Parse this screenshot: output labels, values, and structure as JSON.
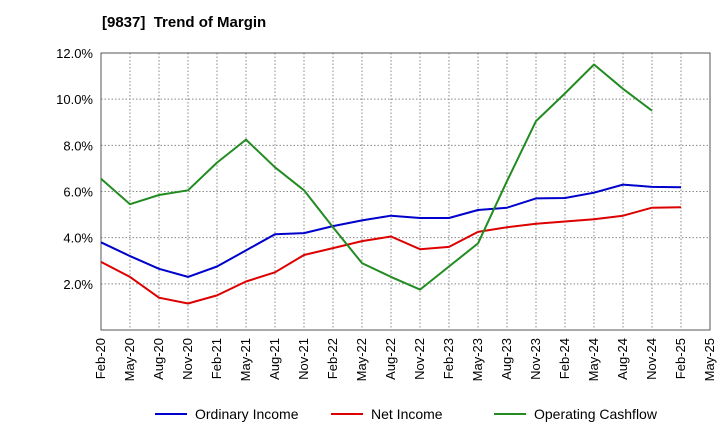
{
  "chart_data": {
    "type": "line",
    "title": "[9837]  Trend of Margin",
    "xlabel": "",
    "ylabel": "",
    "x": [
      "Feb-20",
      "May-20",
      "Aug-20",
      "Nov-20",
      "Feb-21",
      "May-21",
      "Aug-21",
      "Nov-21",
      "Feb-22",
      "May-22",
      "Aug-22",
      "Nov-22",
      "Feb-23",
      "May-23",
      "Aug-23",
      "Nov-23",
      "Feb-24",
      "May-24",
      "Aug-24",
      "Nov-24",
      "Feb-25",
      "May-25"
    ],
    "y_ticks": [
      "2.0%",
      "4.0%",
      "6.0%",
      "8.0%",
      "10.0%",
      "12.0%"
    ],
    "y_tick_values": [
      2,
      4,
      6,
      8,
      10,
      12
    ],
    "ylim": [
      0,
      12
    ],
    "grid": true,
    "legend_position": "bottom",
    "series": [
      {
        "name": "Ordinary Income",
        "color": "#0000cc",
        "values": [
          3.8,
          3.2,
          2.65,
          2.3,
          2.75,
          3.45,
          4.15,
          4.2,
          4.5,
          4.75,
          4.95,
          4.85,
          4.85,
          5.2,
          5.3,
          5.7,
          5.72,
          5.95,
          6.3,
          6.2,
          6.18,
          null
        ]
      },
      {
        "name": "Net Income",
        "color": "#dd0000",
        "values": [
          2.95,
          2.3,
          1.4,
          1.15,
          1.5,
          2.1,
          2.5,
          3.25,
          3.55,
          3.85,
          4.05,
          3.5,
          3.6,
          4.25,
          4.45,
          4.6,
          4.7,
          4.8,
          4.95,
          5.3,
          5.32,
          null
        ]
      },
      {
        "name": "Operating Cashflow",
        "color": "#228b22",
        "values": [
          6.55,
          5.45,
          5.85,
          6.05,
          7.25,
          8.25,
          7.05,
          6.05,
          4.45,
          2.9,
          2.3,
          1.75,
          2.75,
          3.75,
          6.45,
          9.05,
          10.25,
          11.5,
          10.45,
          9.5,
          null,
          null
        ]
      }
    ]
  }
}
